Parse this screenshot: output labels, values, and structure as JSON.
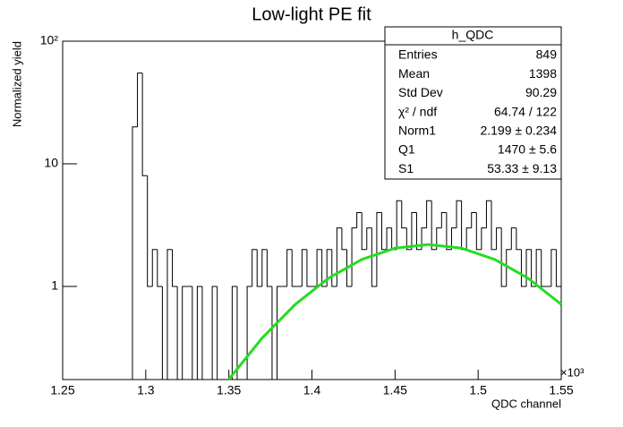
{
  "chart_data": {
    "type": "histogram",
    "title": "Low-light PE fit",
    "x_label": "QDC channel",
    "y_label": "Normalized yield",
    "x_multiplier": "×10³",
    "xlim": [
      1.25,
      1.55
    ],
    "xticks": [
      1.25,
      1.3,
      1.35,
      1.4,
      1.45,
      1.5,
      1.55
    ],
    "ylim": [
      0.174,
      100
    ],
    "log_y": true,
    "yticks": [
      1,
      10,
      {
        "value": 100,
        "label": "10²"
      }
    ],
    "color": "#000000",
    "bins": [
      1.25,
      1.253,
      1.256,
      1.259,
      1.262,
      1.265,
      1.268,
      1.271,
      1.274,
      1.277,
      1.28,
      1.283,
      1.286,
      1.289,
      1.292,
      1.295,
      1.298,
      1.301,
      1.304,
      1.307,
      1.31,
      1.313,
      1.316,
      1.319,
      1.322,
      1.325,
      1.328,
      1.331,
      1.334,
      1.337,
      1.34,
      1.343,
      1.346,
      1.349,
      1.352,
      1.355,
      1.358,
      1.361,
      1.364,
      1.367,
      1.37,
      1.373,
      1.376,
      1.379,
      1.382,
      1.385,
      1.388,
      1.391,
      1.394,
      1.397,
      1.4,
      1.403,
      1.406,
      1.409,
      1.412,
      1.415,
      1.418,
      1.421,
      1.424,
      1.427,
      1.43,
      1.433,
      1.436,
      1.439,
      1.442,
      1.445,
      1.448,
      1.451,
      1.454,
      1.457,
      1.46,
      1.463,
      1.466,
      1.469,
      1.472,
      1.475,
      1.478,
      1.481,
      1.484,
      1.487,
      1.49,
      1.493,
      1.496,
      1.499,
      1.502,
      1.505,
      1.508,
      1.511,
      1.514,
      1.517,
      1.52,
      1.523,
      1.526,
      1.529,
      1.532,
      1.535,
      1.538,
      1.541,
      1.544,
      1.547,
      1.55
    ],
    "values": [
      0,
      0,
      0,
      0,
      0,
      0,
      0,
      0,
      0,
      0,
      0,
      0,
      0,
      0,
      20,
      55,
      8,
      1,
      2,
      1,
      0,
      2,
      1,
      0,
      1,
      1,
      0,
      1,
      0,
      0,
      1,
      0,
      0,
      0,
      1,
      0,
      0,
      1,
      2,
      1,
      2,
      1,
      0,
      1,
      1,
      2,
      1,
      1,
      2,
      1,
      1,
      2,
      1,
      2,
      1,
      3,
      2,
      1,
      3,
      4,
      2,
      3,
      1,
      4,
      2,
      3,
      2,
      5,
      3,
      2,
      4,
      2,
      3,
      5,
      2,
      3,
      4,
      2,
      3,
      5,
      2,
      3,
      4,
      2,
      3,
      5,
      2,
      3,
      1,
      2,
      3,
      2,
      1,
      2,
      1,
      2,
      1,
      1,
      2,
      1
    ],
    "fit": {
      "color": "#22dd22",
      "x": [
        1.35,
        1.37,
        1.39,
        1.41,
        1.43,
        1.45,
        1.47,
        1.49,
        1.51,
        1.53,
        1.55
      ],
      "values": [
        0.175,
        0.379,
        0.714,
        1.168,
        1.66,
        2.05,
        2.199,
        2.05,
        1.66,
        1.168,
        0.714
      ]
    },
    "stats": {
      "title": "h_QDC",
      "rows": [
        [
          "Entries",
          "849"
        ],
        [
          "Mean",
          "1398"
        ],
        [
          "Std Dev",
          "90.29"
        ],
        [
          "χ² / ndf",
          "64.74 / 122"
        ],
        [
          "Norm1",
          "2.199 ± 0.234"
        ],
        [
          "Q1",
          "1470 ± 5.6"
        ],
        [
          "S1",
          "53.33 ± 9.13"
        ]
      ]
    }
  }
}
